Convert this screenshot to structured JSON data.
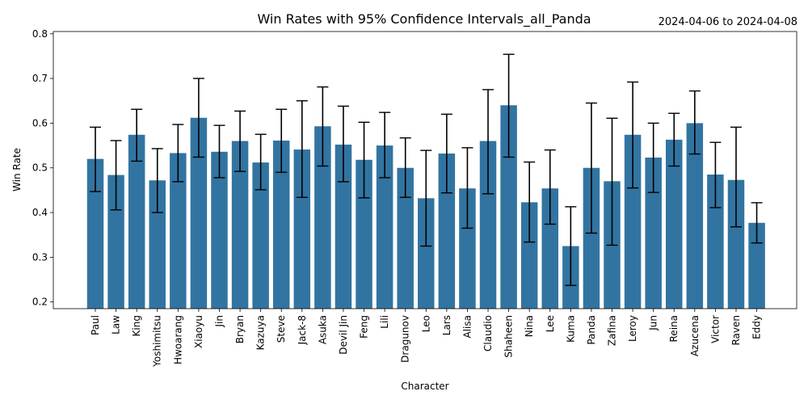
{
  "chart_data": {
    "type": "bar",
    "title": "Win Rates with 95% Confidence Intervals_all_Panda",
    "date_range": "2024-04-06 to 2024-04-08",
    "xlabel": "Character",
    "ylabel": "Win Rate",
    "ylim": [
      0.185,
      0.805
    ],
    "yticks": [
      "0.2",
      "0.3",
      "0.4",
      "0.5",
      "0.6",
      "0.7",
      "0.8"
    ],
    "grid": false,
    "bar_color": "#3274a1",
    "error_color": "#000000",
    "categories": [
      "Paul",
      "Law",
      "King",
      "Yoshimitsu",
      "Hwoarang",
      "Xiaoyu",
      "Jin",
      "Bryan",
      "Kazuya",
      "Steve",
      "Jack-8",
      "Asuka",
      "Devil Jin",
      "Feng",
      "Lili",
      "Dragunov",
      "Leo",
      "Lars",
      "Alisa",
      "Claudio",
      "Shaheen",
      "Nina",
      "Lee",
      "Kuma",
      "Panda",
      "Zafina",
      "Leroy",
      "Jun",
      "Reina",
      "Azucena",
      "Victor",
      "Raven",
      "Eddy"
    ],
    "values": [
      0.52,
      0.484,
      0.574,
      0.472,
      0.533,
      0.612,
      0.536,
      0.56,
      0.512,
      0.561,
      0.541,
      0.593,
      0.552,
      0.518,
      0.55,
      0.5,
      0.432,
      0.532,
      0.454,
      0.56,
      0.64,
      0.423,
      0.454,
      0.325,
      0.5,
      0.47,
      0.574,
      0.523,
      0.563,
      0.6,
      0.485,
      0.473,
      0.377
    ],
    "ci_low": [
      0.447,
      0.406,
      0.515,
      0.4,
      0.469,
      0.524,
      0.478,
      0.492,
      0.451,
      0.49,
      0.434,
      0.504,
      0.469,
      0.433,
      0.478,
      0.434,
      0.325,
      0.444,
      0.365,
      0.442,
      0.524,
      0.334,
      0.374,
      0.237,
      0.354,
      0.327,
      0.455,
      0.445,
      0.504,
      0.531,
      0.411,
      0.368,
      0.332
    ],
    "ci_high": [
      0.591,
      0.561,
      0.631,
      0.543,
      0.597,
      0.7,
      0.595,
      0.627,
      0.575,
      0.631,
      0.65,
      0.681,
      0.638,
      0.602,
      0.624,
      0.567,
      0.539,
      0.62,
      0.545,
      0.675,
      0.754,
      0.513,
      0.54,
      0.413,
      0.645,
      0.611,
      0.692,
      0.6,
      0.622,
      0.672,
      0.557,
      0.591,
      0.422
    ]
  }
}
